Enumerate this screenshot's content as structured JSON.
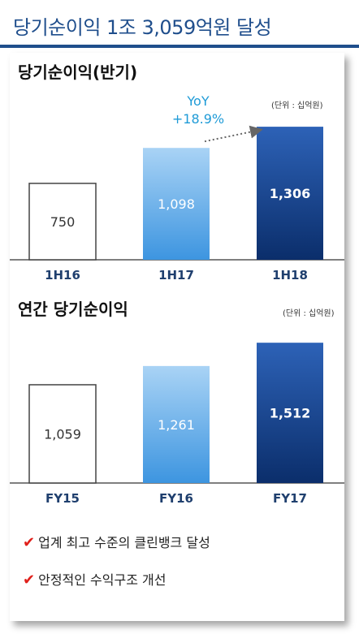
{
  "page_title": "당기순이익 1조 3,059억원 달성",
  "colors": {
    "title": "#1f4e8c",
    "bar_light_top": "#a9d3f5",
    "bar_light_bottom": "#3d95e0",
    "bar_dark_top": "#2d62b7",
    "bar_dark_bottom": "#0b2e6b",
    "yoy": "#1f9bd7",
    "check": "#e0201b"
  },
  "chart_data": [
    {
      "type": "bar",
      "title": "당기순이익(반기)",
      "unit": "(단위 : 십억원)",
      "categories": [
        "1H16",
        "1H17",
        "1H18"
      ],
      "values": [
        750,
        1098,
        1306
      ],
      "value_labels": [
        "750",
        "1,098",
        "1,306"
      ],
      "styles": [
        "outline",
        "light",
        "dark"
      ],
      "annotation": {
        "line1": "YoY",
        "line2": "+18.9%"
      }
    },
    {
      "type": "bar",
      "title": "연간 당기순이익",
      "unit": "(단위 : 십억원)",
      "categories": [
        "FY15",
        "FY16",
        "FY17"
      ],
      "values": [
        1059,
        1261,
        1512
      ],
      "value_labels": [
        "1,059",
        "1,261",
        "1,512"
      ],
      "styles": [
        "outline",
        "light",
        "dark"
      ]
    }
  ],
  "bullets": [
    {
      "check": "✔",
      "text": "업계 최고 수준의 클린뱅크 달성"
    },
    {
      "check": "✔",
      "text": "안정적인 수익구조 개선"
    }
  ]
}
